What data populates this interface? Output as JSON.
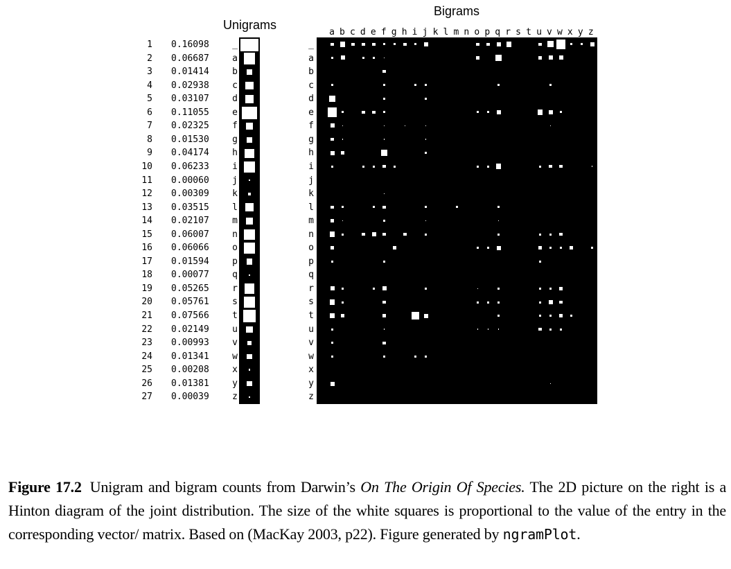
{
  "figure": {
    "unigrams_title": "Unigrams",
    "bigrams_title": "Bigrams",
    "symbols": [
      "_",
      "a",
      "b",
      "c",
      "d",
      "e",
      "f",
      "g",
      "h",
      "i",
      "j",
      "k",
      "l",
      "m",
      "n",
      "o",
      "p",
      "q",
      "r",
      "s",
      "t",
      "u",
      "v",
      "w",
      "x",
      "y",
      "z"
    ],
    "column_letters": [
      "a",
      "b",
      "c",
      "d",
      "e",
      "f",
      "g",
      "h",
      "i",
      "j",
      "k",
      "l",
      "m",
      "n",
      "o",
      "p",
      "q",
      "r",
      "s",
      "t",
      "u",
      "v",
      "w",
      "x",
      "y",
      "z"
    ],
    "row_numbers": [
      "1",
      "2",
      "3",
      "4",
      "5",
      "6",
      "7",
      "8",
      "9",
      "10",
      "11",
      "12",
      "13",
      "14",
      "15",
      "16",
      "17",
      "18",
      "19",
      "20",
      "21",
      "22",
      "23",
      "24",
      "25",
      "26",
      "27"
    ],
    "unigram_probs": [
      "0.16098",
      "0.06687",
      "0.01414",
      "0.02938",
      "0.03107",
      "0.11055",
      "0.02325",
      "0.01530",
      "0.04174",
      "0.06233",
      "0.00060",
      "0.00309",
      "0.03515",
      "0.02107",
      "0.06007",
      "0.06066",
      "0.01594",
      "0.00077",
      "0.05265",
      "0.05761",
      "0.07566",
      "0.02149",
      "0.00993",
      "0.01341",
      "0.00208",
      "0.01381",
      "0.00039"
    ],
    "bigram_weights": [
      [
        0,
        0.3,
        0.5,
        0.3,
        0.3,
        0.3,
        0.2,
        0.2,
        0.3,
        0.2,
        0.4,
        0,
        0,
        0,
        0,
        0.3,
        0.3,
        0.4,
        0.5,
        0,
        0,
        0.3,
        0.6,
        0.9,
        0.2,
        0.2,
        0.4,
        0
      ],
      [
        0,
        0.2,
        0.4,
        0,
        0.2,
        0.2,
        0.1,
        0,
        0,
        0,
        0,
        0,
        0,
        0,
        0,
        0.3,
        0,
        0.6,
        0,
        0,
        0,
        0.3,
        0.4,
        0.4,
        0,
        0,
        0,
        0
      ],
      [
        0,
        0,
        0,
        0,
        0,
        0,
        0.3,
        0,
        0,
        0,
        0,
        0,
        0,
        0,
        0,
        0,
        0,
        0,
        0,
        0,
        0,
        0,
        0,
        0,
        0,
        0,
        0,
        0
      ],
      [
        0,
        0.2,
        0,
        0,
        0,
        0,
        0.2,
        0,
        0,
        0.2,
        0.2,
        0,
        0,
        0,
        0,
        0,
        0,
        0.2,
        0,
        0,
        0,
        0,
        0.2,
        0,
        0,
        0,
        0,
        0
      ],
      [
        0,
        0.6,
        0,
        0,
        0,
        0,
        0.2,
        0,
        0,
        0,
        0.2,
        0,
        0,
        0,
        0,
        0,
        0,
        0,
        0,
        0,
        0,
        0,
        0,
        0,
        0,
        0,
        0,
        0
      ],
      [
        0,
        0.9,
        0.2,
        0,
        0.3,
        0.3,
        0.2,
        0,
        0,
        0,
        0,
        0,
        0,
        0,
        0,
        0.2,
        0.2,
        0.4,
        0,
        0,
        0,
        0.5,
        0.4,
        0.2,
        0,
        0,
        0,
        0
      ],
      [
        0,
        0.4,
        0.1,
        0,
        0,
        0,
        0.1,
        0,
        0.1,
        0,
        0.1,
        0,
        0,
        0,
        0,
        0,
        0,
        0,
        0,
        0,
        0,
        0,
        0.1,
        0,
        0,
        0,
        0,
        0
      ],
      [
        0,
        0.3,
        0.1,
        0,
        0,
        0,
        0.1,
        0,
        0,
        0,
        0.1,
        0,
        0,
        0,
        0,
        0,
        0,
        0,
        0,
        0,
        0,
        0,
        0,
        0,
        0,
        0,
        0,
        0
      ],
      [
        0,
        0.4,
        0.3,
        0,
        0,
        0,
        0.6,
        0,
        0,
        0,
        0.2,
        0,
        0,
        0,
        0,
        0,
        0,
        0,
        0,
        0,
        0,
        0,
        0,
        0,
        0,
        0,
        0,
        0
      ],
      [
        0,
        0.2,
        0,
        0,
        0.2,
        0.2,
        0.3,
        0.2,
        0,
        0,
        0,
        0,
        0,
        0,
        0,
        0.2,
        0.2,
        0.5,
        0,
        0,
        0,
        0.2,
        0.3,
        0.3,
        0,
        0,
        0.1,
        0
      ],
      [
        0,
        0,
        0,
        0,
        0,
        0,
        0,
        0,
        0,
        0,
        0,
        0,
        0,
        0,
        0,
        0,
        0,
        0,
        0,
        0,
        0,
        0,
        0,
        0,
        0,
        0,
        0,
        0
      ],
      [
        0,
        0,
        0,
        0,
        0,
        0,
        0.1,
        0,
        0,
        0,
        0,
        0,
        0,
        0,
        0,
        0,
        0,
        0,
        0,
        0,
        0,
        0,
        0,
        0,
        0,
        0,
        0,
        0
      ],
      [
        0,
        0.3,
        0.2,
        0,
        0,
        0.2,
        0.3,
        0,
        0,
        0,
        0.2,
        0,
        0,
        0.2,
        0,
        0,
        0,
        0.2,
        0,
        0,
        0,
        0,
        0,
        0,
        0,
        0,
        0,
        0.2
      ],
      [
        0,
        0.3,
        0.1,
        0,
        0,
        0,
        0.2,
        0,
        0,
        0,
        0.1,
        0,
        0,
        0,
        0,
        0,
        0,
        0.1,
        0,
        0,
        0,
        0,
        0,
        0,
        0,
        0,
        0,
        0
      ],
      [
        0,
        0.5,
        0.2,
        0,
        0.3,
        0.4,
        0.3,
        0,
        0.3,
        0,
        0.2,
        0,
        0,
        0,
        0,
        0,
        0,
        0.2,
        0,
        0,
        0,
        0.2,
        0.2,
        0.3,
        0,
        0,
        0,
        0
      ],
      [
        0,
        0.3,
        0,
        0,
        0,
        0,
        0,
        0.3,
        0,
        0,
        0,
        0,
        0,
        0,
        0,
        0.2,
        0.2,
        0.4,
        0,
        0,
        0,
        0.3,
        0.2,
        0.2,
        0.3,
        0,
        0.2,
        0
      ],
      [
        0,
        0.2,
        0,
        0,
        0,
        0,
        0.2,
        0,
        0,
        0,
        0,
        0,
        0,
        0,
        0,
        0,
        0,
        0,
        0,
        0,
        0,
        0.2,
        0,
        0,
        0,
        0,
        0,
        0
      ],
      [
        0,
        0,
        0,
        0,
        0,
        0,
        0,
        0,
        0,
        0,
        0,
        0,
        0,
        0,
        0,
        0,
        0,
        0,
        0,
        0,
        0,
        0,
        0,
        0,
        0,
        0,
        0,
        0
      ],
      [
        0,
        0.4,
        0.2,
        0,
        0,
        0.2,
        0.4,
        0,
        0,
        0,
        0.2,
        0,
        0,
        0,
        0,
        0.1,
        0,
        0.2,
        0,
        0,
        0,
        0.2,
        0.2,
        0.3,
        0,
        0,
        0,
        0
      ],
      [
        0,
        0.5,
        0.2,
        0,
        0,
        0,
        0.3,
        0,
        0,
        0,
        0,
        0,
        0,
        0,
        0,
        0.2,
        0.2,
        0.2,
        0,
        0,
        0,
        0.2,
        0.4,
        0.3,
        0,
        0,
        0,
        0
      ],
      [
        0,
        0.5,
        0.3,
        0,
        0,
        0,
        0.3,
        0,
        0,
        0.7,
        0.4,
        0,
        0,
        0,
        0,
        0,
        0,
        0.2,
        0,
        0,
        0,
        0.2,
        0.2,
        0.3,
        0.2,
        0,
        0,
        0
      ],
      [
        0,
        0.2,
        0,
        0,
        0,
        0,
        0.1,
        0,
        0,
        0,
        0,
        0,
        0,
        0,
        0,
        0.1,
        0.1,
        0.1,
        0,
        0,
        0,
        0.3,
        0.2,
        0.2,
        0,
        0,
        0,
        0
      ],
      [
        0,
        0.2,
        0,
        0,
        0,
        0,
        0.3,
        0,
        0,
        0,
        0,
        0,
        0,
        0,
        0,
        0,
        0,
        0,
        0,
        0,
        0,
        0,
        0,
        0,
        0,
        0,
        0,
        0
      ],
      [
        0,
        0.2,
        0,
        0,
        0,
        0,
        0.2,
        0,
        0,
        0.2,
        0.2,
        0,
        0,
        0,
        0,
        0,
        0,
        0,
        0,
        0,
        0,
        0,
        0,
        0,
        0,
        0,
        0,
        0
      ],
      [
        0,
        0,
        0,
        0,
        0,
        0,
        0,
        0,
        0,
        0,
        0,
        0,
        0,
        0,
        0,
        0,
        0,
        0,
        0,
        0,
        0,
        0,
        0,
        0,
        0,
        0,
        0,
        0
      ],
      [
        0,
        0.4,
        0,
        0,
        0,
        0,
        0,
        0,
        0,
        0,
        0,
        0,
        0,
        0,
        0,
        0,
        0,
        0,
        0,
        0,
        0,
        0,
        0.1,
        0,
        0,
        0,
        0,
        0
      ],
      [
        0,
        0,
        0,
        0,
        0,
        0,
        0,
        0,
        0,
        0,
        0,
        0,
        0,
        0,
        0,
        0,
        0,
        0,
        0,
        0,
        0,
        0,
        0,
        0,
        0,
        0,
        0,
        0
      ]
    ]
  },
  "caption": {
    "label": "Figure 17.2",
    "text_1": "Unigram and bigram counts from Darwin’s ",
    "book_title": "On The Origin Of Species.",
    "text_2": " The 2D picture on the right is a Hinton diagram of the joint distribution. The size of the white squares is proportional to the value of the entry in the corresponding vector/ matrix. Based on (MacKay 2003, p22). Figure generated by ",
    "function_name": "ngramPlot",
    "text_3": "."
  }
}
